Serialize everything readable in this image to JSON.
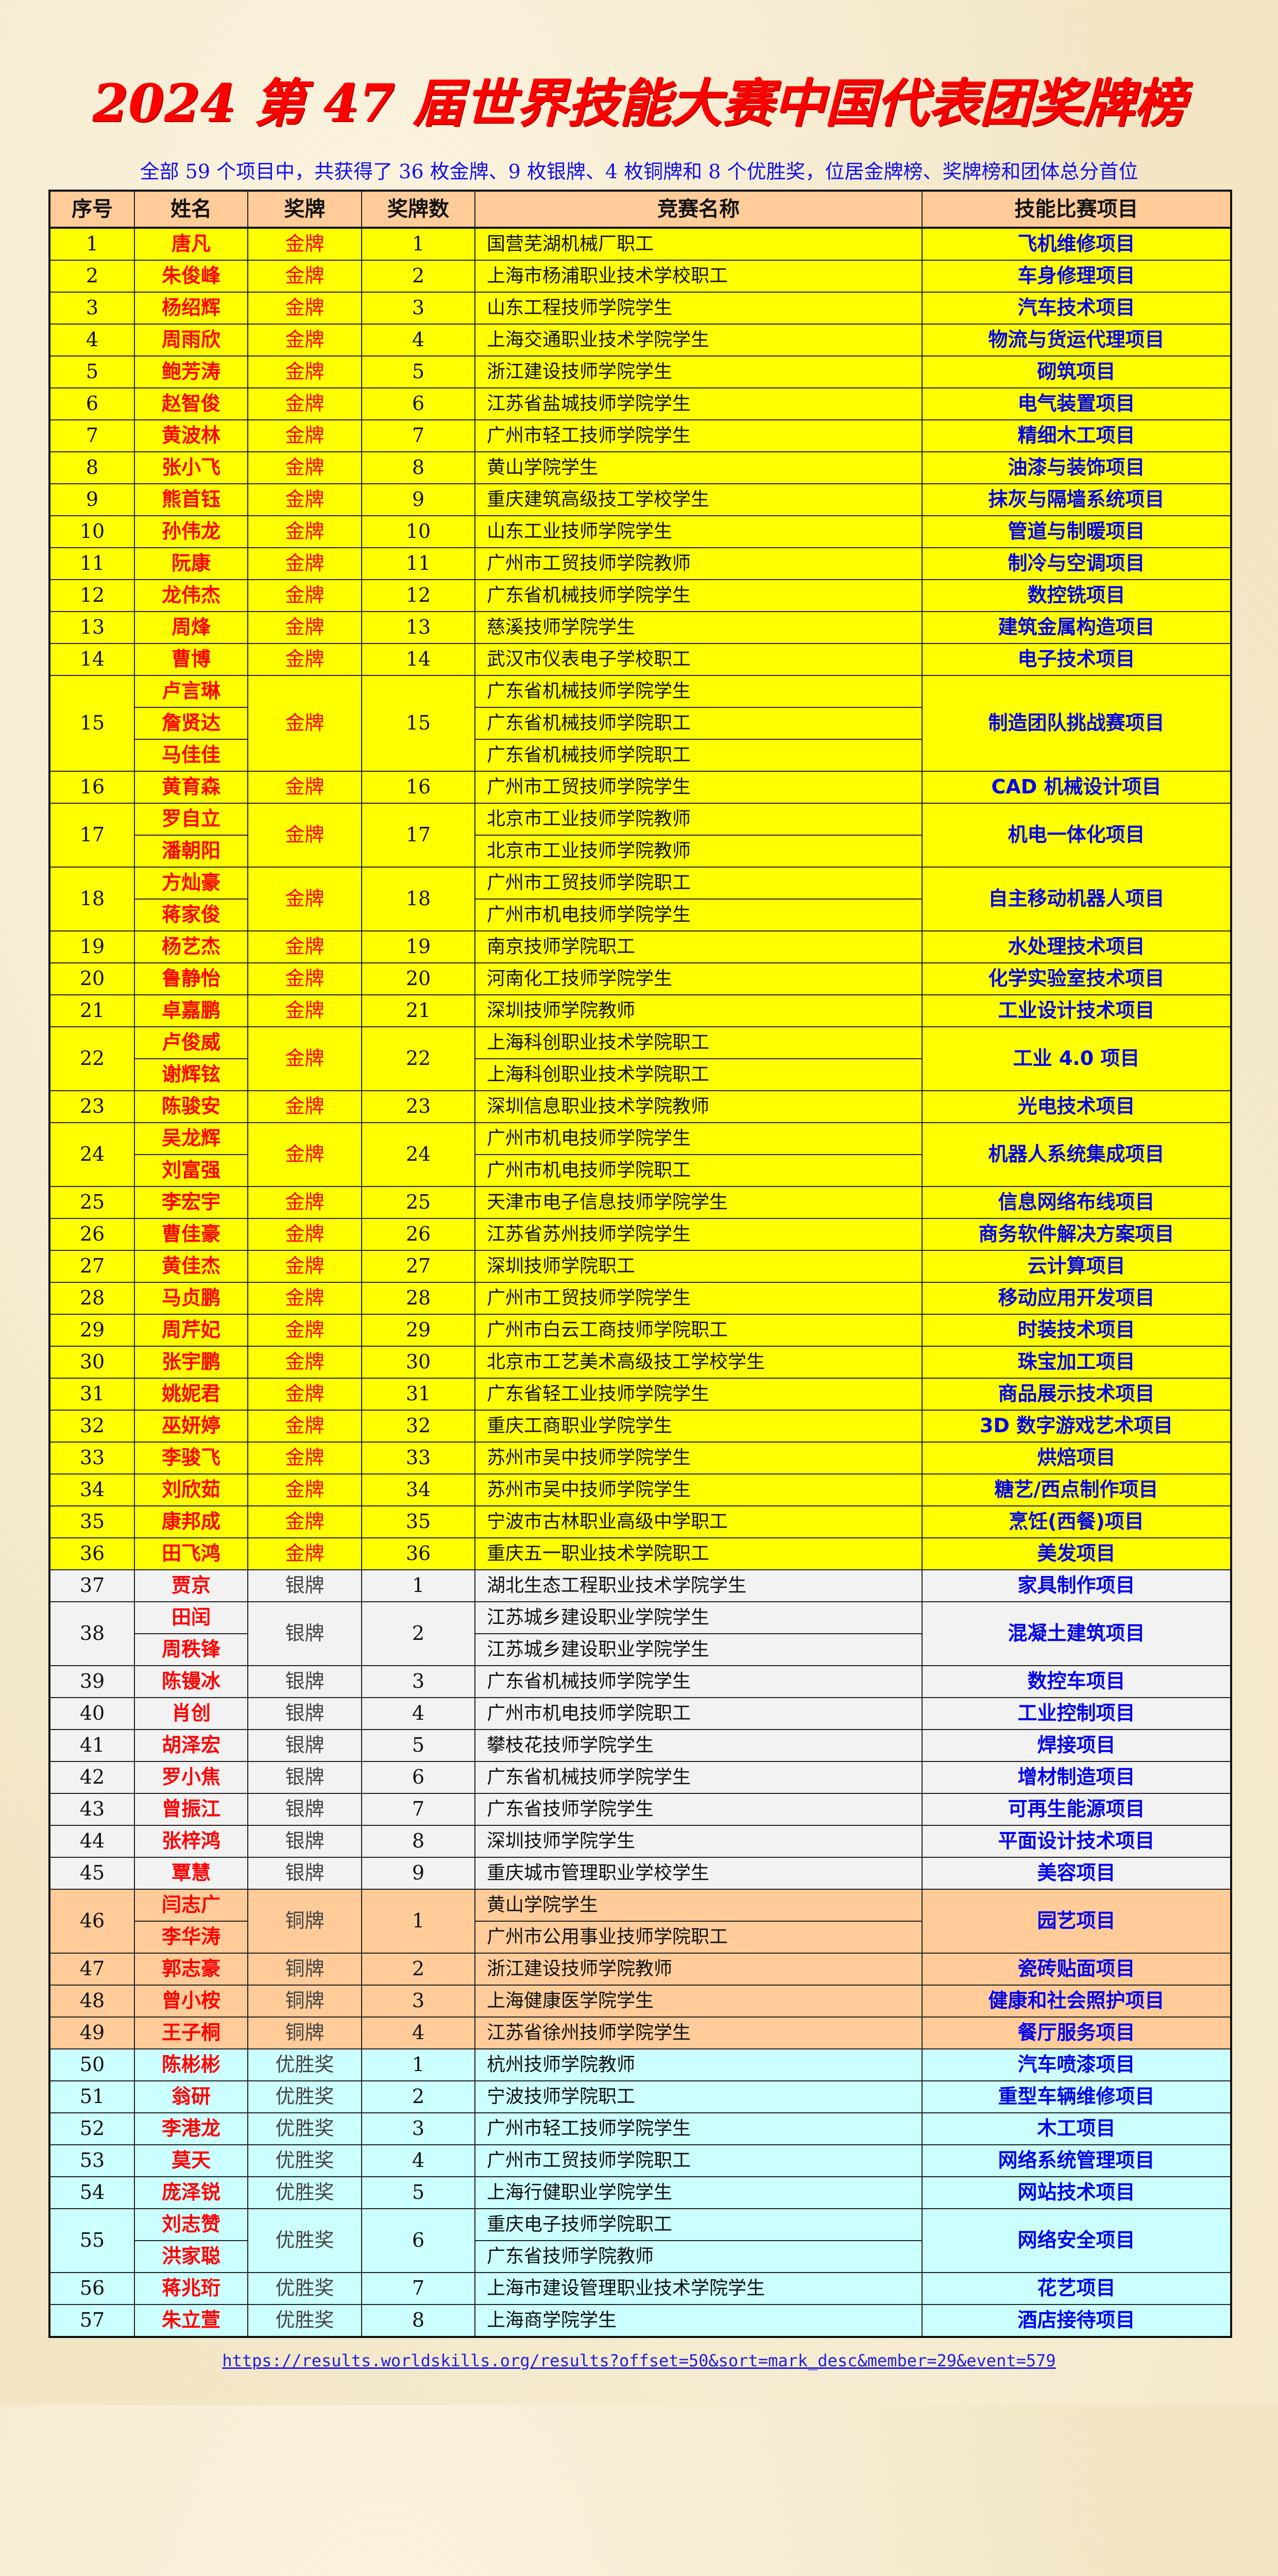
{
  "title": "2024 第 47 届世界技能大赛中国代表团奖牌榜",
  "subtitle": "全部 59 个项目中，共获得了 36 枚金牌、9 枚银牌、4 枚铜牌和 8 个优胜奖，位居金牌榜、奖牌榜和团体总分首位",
  "columns": [
    "序号",
    "姓名",
    "奖牌",
    "奖牌数",
    "竞赛名称",
    "技能比赛项目"
  ],
  "tier_colors": {
    "gold": "#ffff00",
    "silver": "#f2f2f2",
    "bronze": "#ffcc99",
    "excellence": "#ccffff",
    "header": "#ffcc99"
  },
  "rows": [
    {
      "seq": "1",
      "tier": "gold",
      "medal": "金牌",
      "count": "1",
      "names": [
        "唐凡"
      ],
      "schools": [
        "国营芜湖机械厂职工"
      ],
      "project": "飞机维修项目"
    },
    {
      "seq": "2",
      "tier": "gold",
      "medal": "金牌",
      "count": "2",
      "names": [
        "朱俊峰"
      ],
      "schools": [
        "上海市杨浦职业技术学校职工"
      ],
      "project": "车身修理项目"
    },
    {
      "seq": "3",
      "tier": "gold",
      "medal": "金牌",
      "count": "3",
      "names": [
        "杨绍辉"
      ],
      "schools": [
        "山东工程技师学院学生"
      ],
      "project": "汽车技术项目"
    },
    {
      "seq": "4",
      "tier": "gold",
      "medal": "金牌",
      "count": "4",
      "names": [
        "周雨欣"
      ],
      "schools": [
        "上海交通职业技术学院学生"
      ],
      "project": "物流与货运代理项目"
    },
    {
      "seq": "5",
      "tier": "gold",
      "medal": "金牌",
      "count": "5",
      "names": [
        "鲍芳涛"
      ],
      "schools": [
        "浙江建设技师学院学生"
      ],
      "project": "砌筑项目"
    },
    {
      "seq": "6",
      "tier": "gold",
      "medal": "金牌",
      "count": "6",
      "names": [
        "赵智俊"
      ],
      "schools": [
        "江苏省盐城技师学院学生"
      ],
      "project": "电气装置项目"
    },
    {
      "seq": "7",
      "tier": "gold",
      "medal": "金牌",
      "count": "7",
      "names": [
        "黄波林"
      ],
      "schools": [
        "广州市轻工技师学院学生"
      ],
      "project": "精细木工项目"
    },
    {
      "seq": "8",
      "tier": "gold",
      "medal": "金牌",
      "count": "8",
      "names": [
        "张小飞"
      ],
      "schools": [
        "黄山学院学生"
      ],
      "project": "油漆与装饰项目"
    },
    {
      "seq": "9",
      "tier": "gold",
      "medal": "金牌",
      "count": "9",
      "names": [
        "熊首钰"
      ],
      "schools": [
        "重庆建筑高级技工学校学生"
      ],
      "project": "抹灰与隔墙系统项目"
    },
    {
      "seq": "10",
      "tier": "gold",
      "medal": "金牌",
      "count": "10",
      "names": [
        "孙伟龙"
      ],
      "schools": [
        "山东工业技师学院学生"
      ],
      "project": "管道与制暖项目"
    },
    {
      "seq": "11",
      "tier": "gold",
      "medal": "金牌",
      "count": "11",
      "names": [
        "阮康"
      ],
      "schools": [
        "广州市工贸技师学院教师"
      ],
      "project": "制冷与空调项目"
    },
    {
      "seq": "12",
      "tier": "gold",
      "medal": "金牌",
      "count": "12",
      "names": [
        "龙伟杰"
      ],
      "schools": [
        "广东省机械技师学院学生"
      ],
      "project": "数控铣项目"
    },
    {
      "seq": "13",
      "tier": "gold",
      "medal": "金牌",
      "count": "13",
      "names": [
        "周烽"
      ],
      "schools": [
        "慈溪技师学院学生"
      ],
      "project": "建筑金属构造项目"
    },
    {
      "seq": "14",
      "tier": "gold",
      "medal": "金牌",
      "count": "14",
      "names": [
        "曹博"
      ],
      "schools": [
        "武汉市仪表电子学校职工"
      ],
      "project": "电子技术项目"
    },
    {
      "seq": "15",
      "tier": "gold",
      "medal": "金牌",
      "count": "15",
      "names": [
        "卢言琳",
        "詹贤达",
        "马佳佳"
      ],
      "schools": [
        "广东省机械技师学院学生",
        "广东省机械技师学院职工",
        "广东省机械技师学院职工"
      ],
      "project": "制造团队挑战赛项目"
    },
    {
      "seq": "16",
      "tier": "gold",
      "medal": "金牌",
      "count": "16",
      "names": [
        "黄育森"
      ],
      "schools": [
        "广州市工贸技师学院学生"
      ],
      "project": "CAD 机械设计项目"
    },
    {
      "seq": "17",
      "tier": "gold",
      "medal": "金牌",
      "count": "17",
      "names": [
        "罗自立",
        "潘朝阳"
      ],
      "schools": [
        "北京市工业技师学院教师",
        "北京市工业技师学院教师"
      ],
      "project": "机电一体化项目"
    },
    {
      "seq": "18",
      "tier": "gold",
      "medal": "金牌",
      "count": "18",
      "names": [
        "方灿豪",
        "蒋家俊"
      ],
      "schools": [
        "广州市工贸技师学院职工",
        "广州市机电技师学院学生"
      ],
      "project": "自主移动机器人项目"
    },
    {
      "seq": "19",
      "tier": "gold",
      "medal": "金牌",
      "count": "19",
      "names": [
        "杨艺杰"
      ],
      "schools": [
        "南京技师学院职工"
      ],
      "project": "水处理技术项目"
    },
    {
      "seq": "20",
      "tier": "gold",
      "medal": "金牌",
      "count": "20",
      "names": [
        "鲁静怡"
      ],
      "schools": [
        "河南化工技师学院学生"
      ],
      "project": "化学实验室技术项目"
    },
    {
      "seq": "21",
      "tier": "gold",
      "medal": "金牌",
      "count": "21",
      "names": [
        "卓嘉鹏"
      ],
      "schools": [
        "深圳技师学院教师"
      ],
      "project": "工业设计技术项目"
    },
    {
      "seq": "22",
      "tier": "gold",
      "medal": "金牌",
      "count": "22",
      "names": [
        "卢俊威",
        "谢辉铉"
      ],
      "schools": [
        "上海科创职业技术学院职工",
        "上海科创职业技术学院职工"
      ],
      "project": "工业 4.0 项目"
    },
    {
      "seq": "23",
      "tier": "gold",
      "medal": "金牌",
      "count": "23",
      "names": [
        "陈骏安"
      ],
      "schools": [
        "深圳信息职业技术学院教师"
      ],
      "project": "光电技术项目"
    },
    {
      "seq": "24",
      "tier": "gold",
      "medal": "金牌",
      "count": "24",
      "names": [
        "吴龙辉",
        "刘富强"
      ],
      "schools": [
        "广州市机电技师学院学生",
        "广州市机电技师学院职工"
      ],
      "project": "机器人系统集成项目"
    },
    {
      "seq": "25",
      "tier": "gold",
      "medal": "金牌",
      "count": "25",
      "names": [
        "李宏宇"
      ],
      "schools": [
        "天津市电子信息技师学院学生"
      ],
      "project": "信息网络布线项目"
    },
    {
      "seq": "26",
      "tier": "gold",
      "medal": "金牌",
      "count": "26",
      "names": [
        "曹佳豪"
      ],
      "schools": [
        "江苏省苏州技师学院学生"
      ],
      "project": "商务软件解决方案项目"
    },
    {
      "seq": "27",
      "tier": "gold",
      "medal": "金牌",
      "count": "27",
      "names": [
        "黄佳杰"
      ],
      "schools": [
        "深圳技师学院职工"
      ],
      "project": "云计算项目"
    },
    {
      "seq": "28",
      "tier": "gold",
      "medal": "金牌",
      "count": "28",
      "names": [
        "马贞鹏"
      ],
      "schools": [
        "广州市工贸技师学院学生"
      ],
      "project": "移动应用开发项目"
    },
    {
      "seq": "29",
      "tier": "gold",
      "medal": "金牌",
      "count": "29",
      "names": [
        "周芹妃"
      ],
      "schools": [
        "广州市白云工商技师学院职工"
      ],
      "project": "时装技术项目"
    },
    {
      "seq": "30",
      "tier": "gold",
      "medal": "金牌",
      "count": "30",
      "names": [
        "张宇鹏"
      ],
      "schools": [
        "北京市工艺美术高级技工学校学生"
      ],
      "project": "珠宝加工项目"
    },
    {
      "seq": "31",
      "tier": "gold",
      "medal": "金牌",
      "count": "31",
      "names": [
        "姚妮君"
      ],
      "schools": [
        "广东省轻工业技师学院学生"
      ],
      "project": "商品展示技术项目"
    },
    {
      "seq": "32",
      "tier": "gold",
      "medal": "金牌",
      "count": "32",
      "names": [
        "巫妍婷"
      ],
      "schools": [
        "重庆工商职业学院学生"
      ],
      "project": "3D 数字游戏艺术项目"
    },
    {
      "seq": "33",
      "tier": "gold",
      "medal": "金牌",
      "count": "33",
      "names": [
        "李骏飞"
      ],
      "schools": [
        "苏州市吴中技师学院学生"
      ],
      "project": "烘焙项目"
    },
    {
      "seq": "34",
      "tier": "gold",
      "medal": "金牌",
      "count": "34",
      "names": [
        "刘欣茹"
      ],
      "schools": [
        "苏州市吴中技师学院学生"
      ],
      "project": "糖艺/西点制作项目"
    },
    {
      "seq": "35",
      "tier": "gold",
      "medal": "金牌",
      "count": "35",
      "names": [
        "康邦成"
      ],
      "schools": [
        "宁波市古林职业高级中学职工"
      ],
      "project": "烹饪(西餐)项目"
    },
    {
      "seq": "36",
      "tier": "gold",
      "medal": "金牌",
      "count": "36",
      "names": [
        "田飞鸿"
      ],
      "schools": [
        "重庆五一职业技术学院职工"
      ],
      "project": "美发项目"
    },
    {
      "seq": "37",
      "tier": "silver",
      "medal": "银牌",
      "count": "1",
      "names": [
        "贾京"
      ],
      "schools": [
        "湖北生态工程职业技术学院学生"
      ],
      "project": "家具制作项目"
    },
    {
      "seq": "38",
      "tier": "silver",
      "medal": "银牌",
      "count": "2",
      "names": [
        "田闰",
        "周秩锋"
      ],
      "schools": [
        "江苏城乡建设职业学院学生",
        "江苏城乡建设职业学院学生"
      ],
      "project": "混凝土建筑项目"
    },
    {
      "seq": "39",
      "tier": "silver",
      "medal": "银牌",
      "count": "3",
      "names": [
        "陈镘冰"
      ],
      "schools": [
        "广东省机械技师学院学生"
      ],
      "project": "数控车项目"
    },
    {
      "seq": "40",
      "tier": "silver",
      "medal": "银牌",
      "count": "4",
      "names": [
        "肖创"
      ],
      "schools": [
        "广州市机电技师学院职工"
      ],
      "project": "工业控制项目"
    },
    {
      "seq": "41",
      "tier": "silver",
      "medal": "银牌",
      "count": "5",
      "names": [
        "胡泽宏"
      ],
      "schools": [
        "攀枝花技师学院学生"
      ],
      "project": "焊接项目"
    },
    {
      "seq": "42",
      "tier": "silver",
      "medal": "银牌",
      "count": "6",
      "names": [
        "罗小焦"
      ],
      "schools": [
        "广东省机械技师学院学生"
      ],
      "project": "增材制造项目"
    },
    {
      "seq": "43",
      "tier": "silver",
      "medal": "银牌",
      "count": "7",
      "names": [
        "曾振江"
      ],
      "schools": [
        "广东省技师学院学生"
      ],
      "project": "可再生能源项目"
    },
    {
      "seq": "44",
      "tier": "silver",
      "medal": "银牌",
      "count": "8",
      "names": [
        "张梓鸿"
      ],
      "schools": [
        "深圳技师学院学生"
      ],
      "project": "平面设计技术项目"
    },
    {
      "seq": "45",
      "tier": "silver",
      "medal": "银牌",
      "count": "9",
      "names": [
        "覃慧"
      ],
      "schools": [
        "重庆城市管理职业学校学生"
      ],
      "project": "美容项目"
    },
    {
      "seq": "46",
      "tier": "bronze",
      "medal": "铜牌",
      "count": "1",
      "names": [
        "闫志广",
        "李华涛"
      ],
      "schools": [
        "黄山学院学生",
        "广州市公用事业技师学院职工"
      ],
      "project": "园艺项目"
    },
    {
      "seq": "47",
      "tier": "bronze",
      "medal": "铜牌",
      "count": "2",
      "names": [
        "郭志豪"
      ],
      "schools": [
        "浙江建设技师学院教师"
      ],
      "project": "瓷砖贴面项目"
    },
    {
      "seq": "48",
      "tier": "bronze",
      "medal": "铜牌",
      "count": "3",
      "names": [
        "曾小桉"
      ],
      "schools": [
        "上海健康医学院学生"
      ],
      "project": "健康和社会照护项目"
    },
    {
      "seq": "49",
      "tier": "bronze",
      "medal": "铜牌",
      "count": "4",
      "names": [
        "王子桐"
      ],
      "schools": [
        "江苏省徐州技师学院学生"
      ],
      "project": "餐厅服务项目"
    },
    {
      "seq": "50",
      "tier": "excellence",
      "medal": "优胜奖",
      "count": "1",
      "names": [
        "陈彬彬"
      ],
      "schools": [
        "杭州技师学院教师"
      ],
      "project": "汽车喷漆项目"
    },
    {
      "seq": "51",
      "tier": "excellence",
      "medal": "优胜奖",
      "count": "2",
      "names": [
        "翁研"
      ],
      "schools": [
        "宁波技师学院职工"
      ],
      "project": "重型车辆维修项目"
    },
    {
      "seq": "52",
      "tier": "excellence",
      "medal": "优胜奖",
      "count": "3",
      "names": [
        "李港龙"
      ],
      "schools": [
        "广州市轻工技师学院学生"
      ],
      "project": "木工项目"
    },
    {
      "seq": "53",
      "tier": "excellence",
      "medal": "优胜奖",
      "count": "4",
      "names": [
        "莫天"
      ],
      "schools": [
        "广州市工贸技师学院职工"
      ],
      "project": "网络系统管理项目"
    },
    {
      "seq": "54",
      "tier": "excellence",
      "medal": "优胜奖",
      "count": "5",
      "names": [
        "庞泽锐"
      ],
      "schools": [
        "上海行健职业学院学生"
      ],
      "project": "网站技术项目"
    },
    {
      "seq": "55",
      "tier": "excellence",
      "medal": "优胜奖",
      "count": "6",
      "names": [
        "刘志赞",
        "洪家聪"
      ],
      "schools": [
        "重庆电子技师学院职工",
        "广东省技师学院教师"
      ],
      "project": "网络安全项目"
    },
    {
      "seq": "56",
      "tier": "excellence",
      "medal": "优胜奖",
      "count": "7",
      "names": [
        "蒋兆珩"
      ],
      "schools": [
        "上海市建设管理职业技术学院学生"
      ],
      "project": "花艺项目"
    },
    {
      "seq": "57",
      "tier": "excellence",
      "medal": "优胜奖",
      "count": "8",
      "names": [
        "朱立萱"
      ],
      "schools": [
        "上海商学院学生"
      ],
      "project": "酒店接待项目"
    }
  ],
  "source_url": "https://results.worldskills.org/results?offset=50&sort=mark_desc&member=29&event=579"
}
